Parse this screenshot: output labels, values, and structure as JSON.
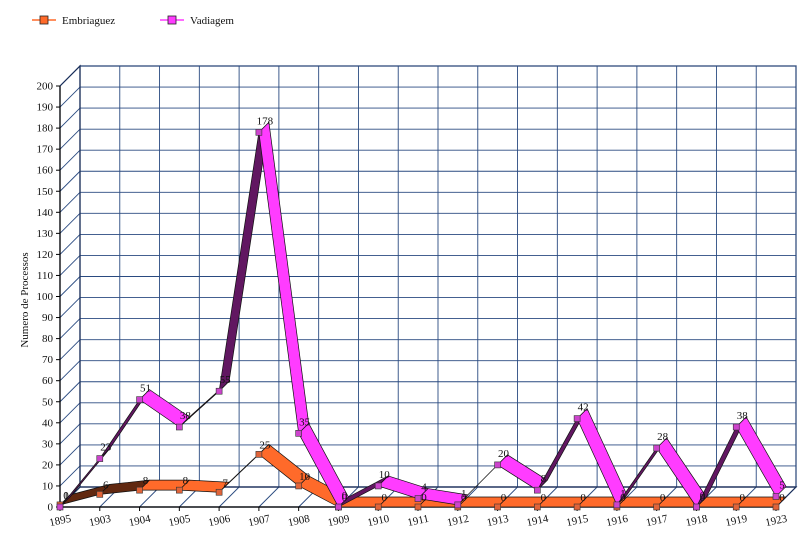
{
  "chart_data": {
    "type": "line",
    "style": "3d-ribbon",
    "title": "",
    "xlabel": "",
    "ylabel": "Numero de Processos",
    "ylim": [
      0,
      200
    ],
    "yticks": [
      0,
      10,
      20,
      30,
      40,
      50,
      60,
      70,
      80,
      90,
      100,
      110,
      120,
      130,
      140,
      150,
      160,
      170,
      180,
      190,
      200
    ],
    "grid": true,
    "legend_position": "top-left",
    "categories": [
      "1895",
      "1903",
      "1904",
      "1905",
      "1906",
      "1907",
      "1908",
      "1909",
      "1910",
      "1911",
      "1912",
      "1913",
      "1914",
      "1915",
      "1916",
      "1917",
      "1918",
      "1919",
      "1923"
    ],
    "series": [
      {
        "name": "Embriaguez",
        "color": "#ff6a2a",
        "marker_color": "#e0643a",
        "values": [
          1,
          6,
          8,
          8,
          7,
          25,
          10,
          0,
          0,
          0,
          0,
          0,
          0,
          0,
          0,
          0,
          0,
          0,
          0
        ]
      },
      {
        "name": "Vadiagem",
        "color": "#ff3cff",
        "marker_color": "#cc44cc",
        "values": [
          0,
          23,
          51,
          38,
          55,
          178,
          35,
          0,
          10,
          4,
          1,
          20,
          8,
          42,
          1,
          28,
          0,
          38,
          5
        ]
      }
    ]
  }
}
